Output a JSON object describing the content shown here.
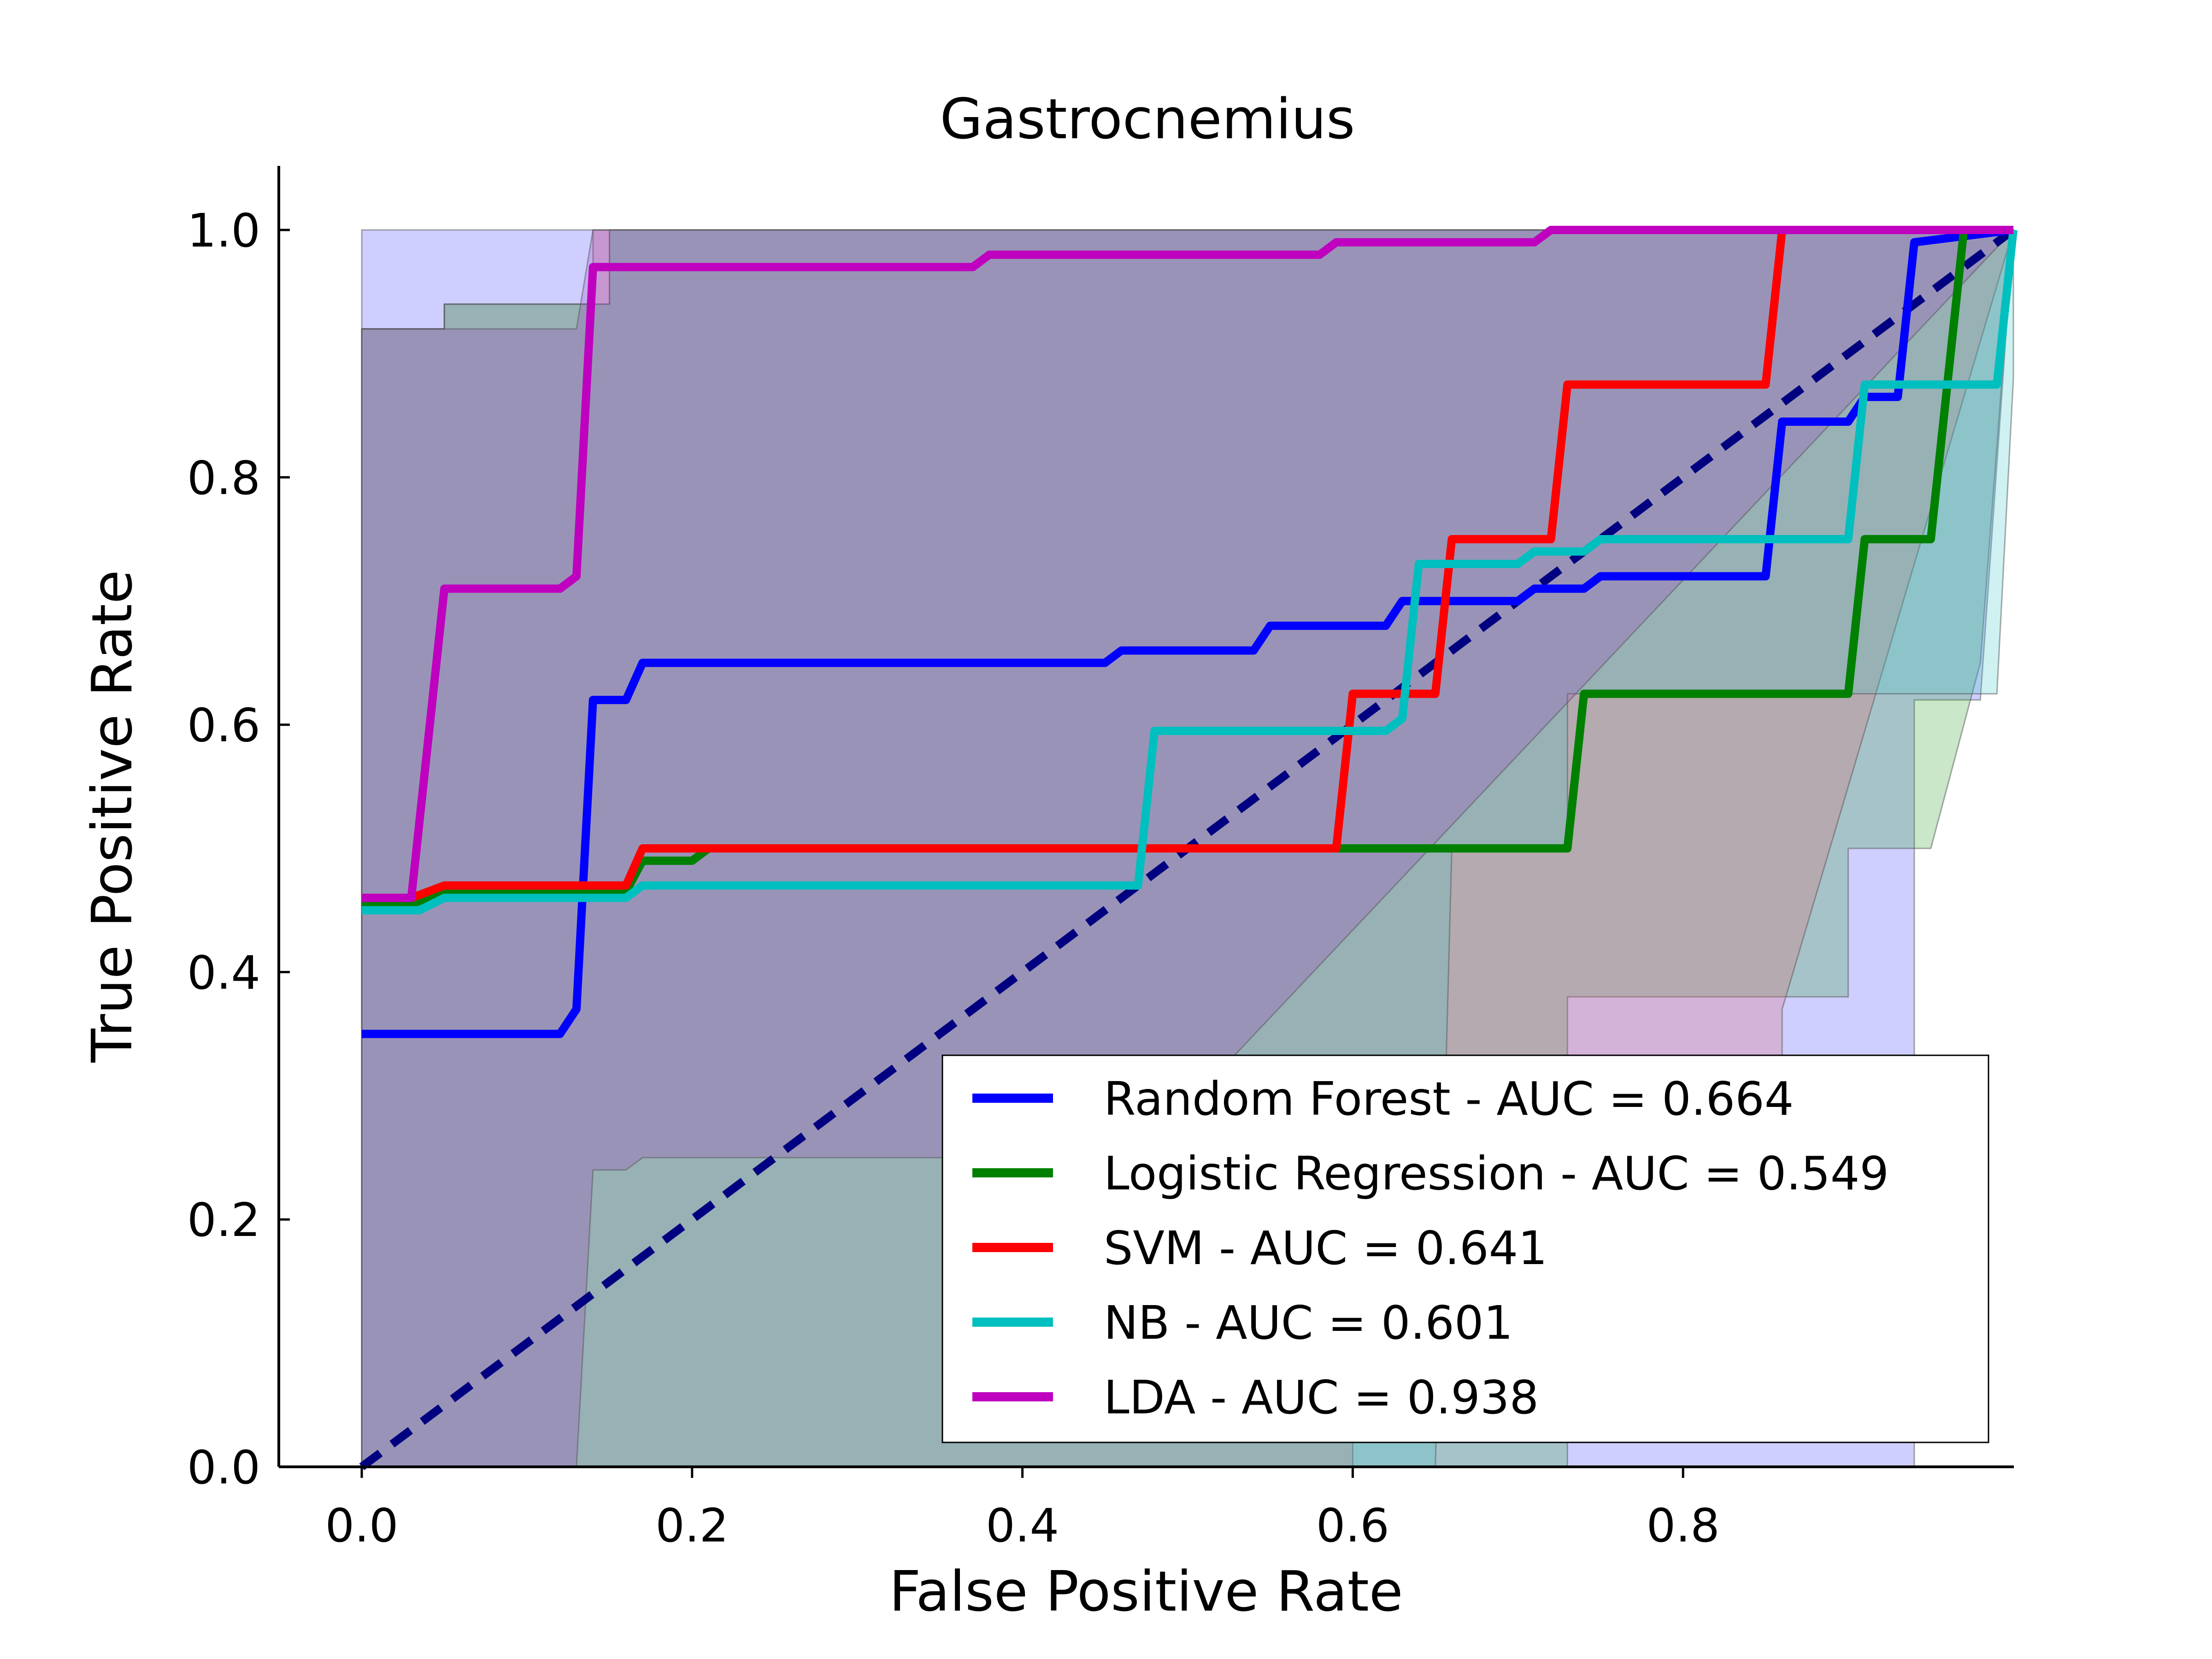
{
  "chart_data": {
    "type": "line",
    "title": "Gastrocnemius",
    "xlabel": "False Positive Rate",
    "ylabel": "True Positive Rate",
    "xlim": [
      -0.05,
      1.0
    ],
    "ylim": [
      0.0,
      1.05
    ],
    "x_ticks": [
      "0.0",
      "0.2",
      "0.4",
      "0.6",
      "0.8"
    ],
    "x_tick_values": [
      0.0,
      0.2,
      0.4,
      0.6,
      0.8
    ],
    "y_ticks": [
      "0.0",
      "0.2",
      "0.4",
      "0.6",
      "0.8",
      "1.0"
    ],
    "y_tick_values": [
      0.0,
      0.2,
      0.4,
      0.6,
      0.8,
      1.0
    ],
    "grid": false,
    "legend_position": "lower-right",
    "chance_line": {
      "x": [
        0,
        1
      ],
      "y": [
        0,
        1
      ],
      "color": "#000080",
      "style": "dashed"
    },
    "series": [
      {
        "name": "Random Forest - AUC = 0.664",
        "color": "#0000ff",
        "band_color": "#4040ff",
        "x": [
          0.0,
          0.12,
          0.13,
          0.14,
          0.16,
          0.17,
          0.36,
          0.45,
          0.46,
          0.54,
          0.55,
          0.62,
          0.63,
          0.7,
          0.71,
          0.74,
          0.75,
          0.85,
          0.86,
          0.9,
          0.91,
          0.93,
          0.94,
          1.0
        ],
        "y": [
          0.35,
          0.35,
          0.37,
          0.62,
          0.62,
          0.65,
          0.65,
          0.65,
          0.66,
          0.66,
          0.68,
          0.68,
          0.7,
          0.7,
          0.71,
          0.71,
          0.72,
          0.72,
          0.845,
          0.845,
          0.865,
          0.865,
          0.99,
          1.0
        ],
        "upper": [
          [
            0.0,
            1.0
          ],
          [
            1.0,
            1.0
          ]
        ],
        "lower": [
          [
            0.0,
            0.0
          ],
          [
            0.94,
            0.0
          ],
          [
            0.94,
            0.62
          ],
          [
            0.98,
            0.62
          ],
          [
            1.0,
            1.0
          ]
        ]
      },
      {
        "name": "Logistic Regression - AUC = 0.549",
        "color": "#008000",
        "band_color": "#2ca02c",
        "x": [
          0.0,
          0.03,
          0.05,
          0.12,
          0.16,
          0.17,
          0.2,
          0.21,
          0.6,
          0.73,
          0.74,
          0.9,
          0.91,
          0.95,
          0.97,
          1.0
        ],
        "y": [
          0.455,
          0.455,
          0.465,
          0.465,
          0.465,
          0.49,
          0.49,
          0.5,
          0.5,
          0.5,
          0.625,
          0.625,
          0.75,
          0.75,
          1.0,
          1.0
        ],
        "upper": [
          [
            0.0,
            0.92
          ],
          [
            0.05,
            0.92
          ],
          [
            0.05,
            0.94
          ],
          [
            0.15,
            0.94
          ],
          [
            0.15,
            1.0
          ],
          [
            1.0,
            1.0
          ]
        ],
        "lower": [
          [
            0.0,
            0.0
          ],
          [
            0.73,
            0.0
          ],
          [
            0.73,
            0.38
          ],
          [
            0.9,
            0.38
          ],
          [
            0.9,
            0.5
          ],
          [
            0.95,
            0.5
          ],
          [
            0.98,
            0.65
          ],
          [
            1.0,
            1.0
          ]
        ]
      },
      {
        "name": "SVM - AUC = 0.641",
        "color": "#ff0000",
        "band_color": "#e06060",
        "x": [
          0.0,
          0.03,
          0.05,
          0.15,
          0.16,
          0.17,
          0.59,
          0.6,
          0.65,
          0.66,
          0.72,
          0.73,
          0.85,
          0.86,
          1.0
        ],
        "y": [
          0.46,
          0.46,
          0.47,
          0.47,
          0.47,
          0.5,
          0.5,
          0.625,
          0.625,
          0.75,
          0.75,
          0.875,
          0.875,
          1.0,
          1.0
        ],
        "upper": [
          [
            0.0,
            0.92
          ],
          [
            0.05,
            0.92
          ],
          [
            0.05,
            0.94
          ],
          [
            0.14,
            0.94
          ],
          [
            0.14,
            1.0
          ],
          [
            1.0,
            1.0
          ]
        ],
        "lower": [
          [
            0.0,
            0.0
          ],
          [
            0.6,
            0.0
          ],
          [
            0.6,
            0.1
          ],
          [
            0.86,
            0.3
          ],
          [
            0.86,
            0.37
          ],
          [
            1.0,
            1.0
          ]
        ]
      },
      {
        "name": "NB - AUC = 0.601",
        "color": "#00bfbf",
        "band_color": "#40c8c8",
        "x": [
          0.0,
          0.035,
          0.05,
          0.16,
          0.17,
          0.47,
          0.48,
          0.62,
          0.63,
          0.64,
          0.7,
          0.71,
          0.74,
          0.75,
          0.9,
          0.91,
          0.99,
          1.0
        ],
        "y": [
          0.45,
          0.45,
          0.46,
          0.46,
          0.47,
          0.47,
          0.595,
          0.595,
          0.605,
          0.73,
          0.73,
          0.74,
          0.74,
          0.75,
          0.75,
          0.875,
          0.875,
          1.0
        ],
        "upper": [
          [
            0.0,
            0.92
          ],
          [
            0.05,
            0.92
          ],
          [
            0.05,
            0.94
          ],
          [
            0.15,
            0.94
          ],
          [
            0.15,
            1.0
          ],
          [
            1.0,
            1.0
          ]
        ],
        "lower": [
          [
            0.0,
            0.0
          ],
          [
            0.65,
            0.0
          ],
          [
            0.66,
            0.5
          ],
          [
            0.73,
            0.5
          ],
          [
            0.73,
            0.625
          ],
          [
            0.99,
            0.625
          ],
          [
            1.0,
            0.88
          ]
        ]
      },
      {
        "name": "LDA - AUC = 0.938",
        "color": "#bf00bf",
        "band_color": "#a040c0",
        "x": [
          0.0,
          0.03,
          0.05,
          0.12,
          0.13,
          0.14,
          0.15,
          0.37,
          0.38,
          0.58,
          0.59,
          0.71,
          0.72,
          1.0
        ],
        "y": [
          0.46,
          0.46,
          0.71,
          0.71,
          0.72,
          0.97,
          0.97,
          0.97,
          0.98,
          0.98,
          0.99,
          0.99,
          1.0,
          1.0
        ],
        "upper": [
          [
            0.0,
            0.92
          ],
          [
            0.13,
            0.92
          ],
          [
            0.14,
            1.0
          ],
          [
            1.0,
            1.0
          ]
        ],
        "lower": [
          [
            0.0,
            0.0
          ],
          [
            0.13,
            0.0
          ],
          [
            0.14,
            0.24
          ],
          [
            0.16,
            0.24
          ],
          [
            0.17,
            0.25
          ],
          [
            0.47,
            0.25
          ],
          [
            1.0,
            1.0
          ]
        ]
      }
    ]
  }
}
